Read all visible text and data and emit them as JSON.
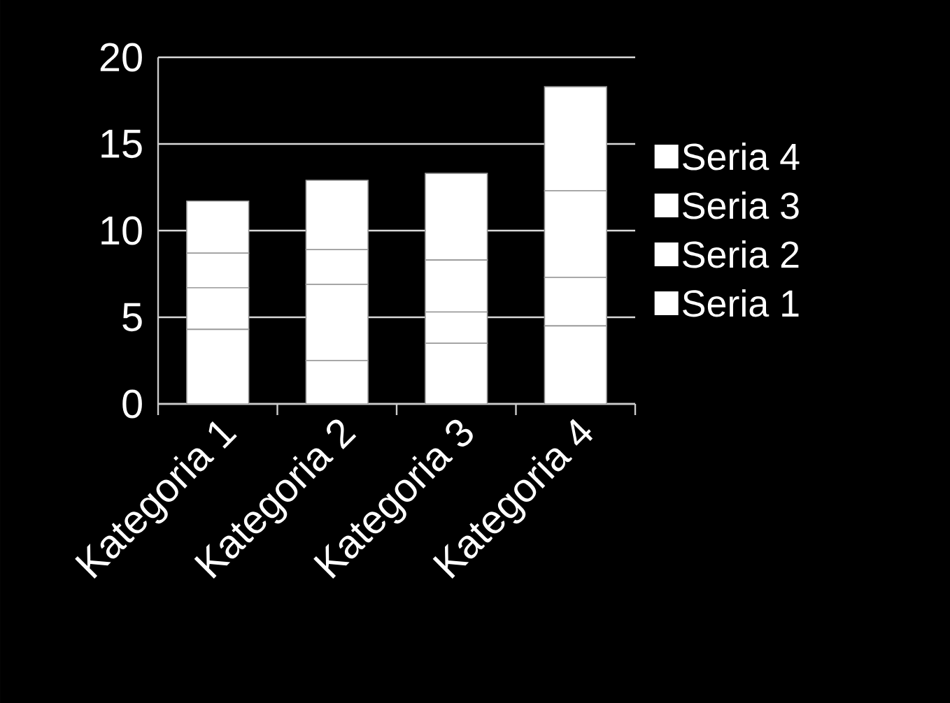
{
  "chart_data": {
    "type": "bar",
    "stacked": true,
    "categories": [
      "Kategoria 1",
      "Kategoria 2",
      "Kategoria 3",
      "Kategoria 4"
    ],
    "series": [
      {
        "name": "Seria 1",
        "color": "#ffffff",
        "values": [
          4.3,
          2.5,
          3.5,
          4.5
        ]
      },
      {
        "name": "Seria 2",
        "color": "#ffffff",
        "values": [
          2.4,
          4.4,
          1.8,
          2.8
        ]
      },
      {
        "name": "Seria 3",
        "color": "#ffffff",
        "values": [
          2,
          2,
          3,
          5
        ]
      },
      {
        "name": "Seria 4",
        "color": "#ffffff",
        "values": [
          3,
          4,
          5,
          6
        ]
      }
    ],
    "ylim": [
      0,
      20
    ],
    "yticks": [
      0,
      5,
      10,
      15,
      20
    ],
    "grid": "y",
    "legend": "right"
  }
}
